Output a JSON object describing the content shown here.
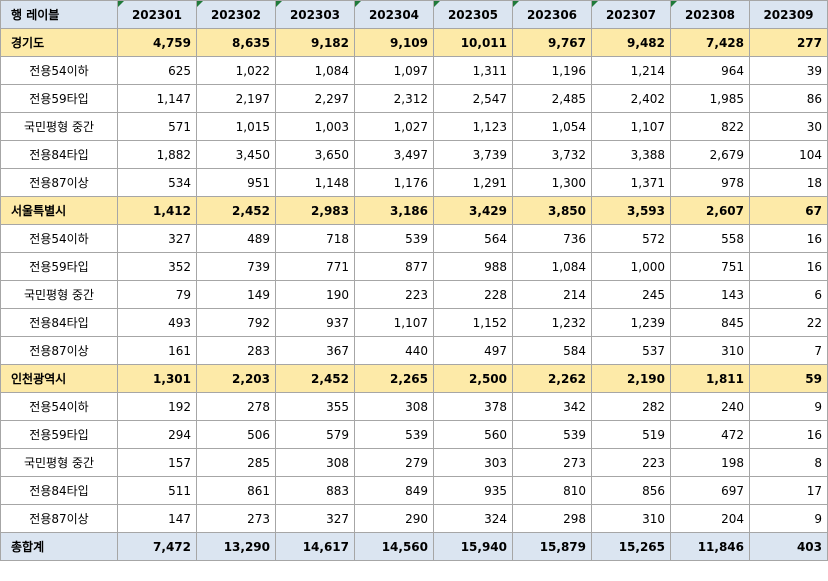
{
  "header": {
    "row_label": "행 레이블",
    "columns": [
      "202301",
      "202302",
      "202303",
      "202304",
      "202305",
      "202306",
      "202307",
      "202308",
      "202309"
    ]
  },
  "rows": [
    {
      "type": "region",
      "label": "경기도",
      "values": [
        "4,759",
        "8,635",
        "9,182",
        "9,109",
        "10,011",
        "9,767",
        "9,482",
        "7,428",
        "277"
      ]
    },
    {
      "type": "sub",
      "label": "전용54이하",
      "values": [
        "625",
        "1,022",
        "1,084",
        "1,097",
        "1,311",
        "1,196",
        "1,214",
        "964",
        "39"
      ]
    },
    {
      "type": "sub",
      "label": "전용59타입",
      "values": [
        "1,147",
        "2,197",
        "2,297",
        "2,312",
        "2,547",
        "2,485",
        "2,402",
        "1,985",
        "86"
      ]
    },
    {
      "type": "sub",
      "label": "국민평형 중간",
      "values": [
        "571",
        "1,015",
        "1,003",
        "1,027",
        "1,123",
        "1,054",
        "1,107",
        "822",
        "30"
      ]
    },
    {
      "type": "sub",
      "label": "전용84타입",
      "values": [
        "1,882",
        "3,450",
        "3,650",
        "3,497",
        "3,739",
        "3,732",
        "3,388",
        "2,679",
        "104"
      ]
    },
    {
      "type": "sub",
      "label": "전용87이상",
      "values": [
        "534",
        "951",
        "1,148",
        "1,176",
        "1,291",
        "1,300",
        "1,371",
        "978",
        "18"
      ]
    },
    {
      "type": "region",
      "label": "서울특별시",
      "values": [
        "1,412",
        "2,452",
        "2,983",
        "3,186",
        "3,429",
        "3,850",
        "3,593",
        "2,607",
        "67"
      ]
    },
    {
      "type": "sub",
      "label": "전용54이하",
      "values": [
        "327",
        "489",
        "718",
        "539",
        "564",
        "736",
        "572",
        "558",
        "16"
      ]
    },
    {
      "type": "sub",
      "label": "전용59타입",
      "values": [
        "352",
        "739",
        "771",
        "877",
        "988",
        "1,084",
        "1,000",
        "751",
        "16"
      ]
    },
    {
      "type": "sub",
      "label": "국민평형 중간",
      "values": [
        "79",
        "149",
        "190",
        "223",
        "228",
        "214",
        "245",
        "143",
        "6"
      ]
    },
    {
      "type": "sub",
      "label": "전용84타입",
      "values": [
        "493",
        "792",
        "937",
        "1,107",
        "1,152",
        "1,232",
        "1,239",
        "845",
        "22"
      ]
    },
    {
      "type": "sub",
      "label": "전용87이상",
      "values": [
        "161",
        "283",
        "367",
        "440",
        "497",
        "584",
        "537",
        "310",
        "7"
      ]
    },
    {
      "type": "region",
      "label": "인천광역시",
      "values": [
        "1,301",
        "2,203",
        "2,452",
        "2,265",
        "2,500",
        "2,262",
        "2,190",
        "1,811",
        "59"
      ]
    },
    {
      "type": "sub",
      "label": "전용54이하",
      "values": [
        "192",
        "278",
        "355",
        "308",
        "378",
        "342",
        "282",
        "240",
        "9"
      ]
    },
    {
      "type": "sub",
      "label": "전용59타입",
      "values": [
        "294",
        "506",
        "579",
        "539",
        "560",
        "539",
        "519",
        "472",
        "16"
      ]
    },
    {
      "type": "sub",
      "label": "국민평형 중간",
      "values": [
        "157",
        "285",
        "308",
        "279",
        "303",
        "273",
        "223",
        "198",
        "8"
      ]
    },
    {
      "type": "sub",
      "label": "전용84타입",
      "values": [
        "511",
        "861",
        "883",
        "849",
        "935",
        "810",
        "856",
        "697",
        "17"
      ]
    },
    {
      "type": "sub",
      "label": "전용87이상",
      "values": [
        "147",
        "273",
        "327",
        "290",
        "324",
        "298",
        "310",
        "204",
        "9"
      ]
    },
    {
      "type": "total",
      "label": "총합계",
      "values": [
        "7,472",
        "13,290",
        "14,617",
        "14,560",
        "15,940",
        "15,879",
        "15,265",
        "11,846",
        "403"
      ]
    }
  ],
  "colors": {
    "header_bg": "#dbe5f1",
    "region_bg": "#fdeaa8",
    "grid_line": "#a6a6a6",
    "indicator_green": "#1f7a3a"
  }
}
